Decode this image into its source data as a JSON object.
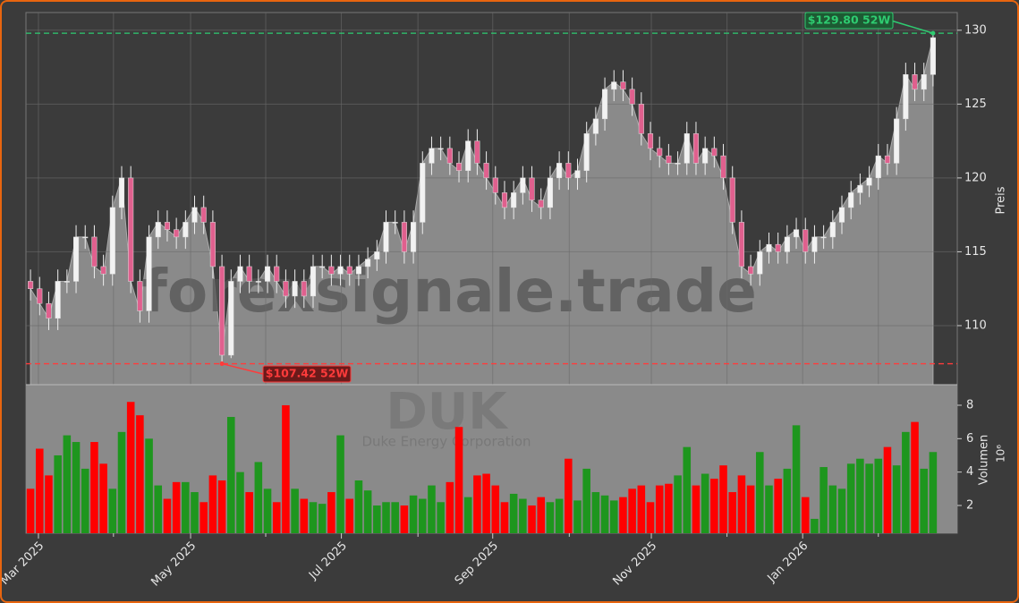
{
  "chart_data": {
    "type": "candlestick",
    "watermark": "forexsignale.trade",
    "ticker": "DUK",
    "company": "Duke Energy Corporation",
    "ylabel": "Preis",
    "y2label": "Volumen",
    "y2unit": "10⁶",
    "ylim": [
      106,
      131.2
    ],
    "yticks": [
      110,
      115,
      120,
      125,
      130
    ],
    "y2lim": [
      0.34,
      9.23
    ],
    "y2ticks": [
      2,
      4,
      6,
      8
    ],
    "xticks": [
      {
        "value": 0.87,
        "label": "Mar 2025"
      },
      {
        "value": 17.56,
        "label": "May 2025"
      },
      {
        "value": 34.1,
        "label": "Jul 2025"
      },
      {
        "value": 50.7,
        "label": "Sep 2025"
      },
      {
        "value": 68.1,
        "label": "Nov 2025"
      },
      {
        "value": 84.7,
        "label": "Jan 2026"
      }
    ],
    "xminorticks": [
      9.1,
      25.8,
      42.5,
      59.1,
      76.4,
      93.0
    ],
    "grid": true,
    "up_color": "#f2f2f2",
    "down_color": "#e0608e",
    "volume_up_color": "#1e961e",
    "volume_down_color": "#ff0000",
    "area_color": "#8a8a8a",
    "high_52w": {
      "value": 129.8,
      "label": "$129.80 52W",
      "color": "#2ecc71"
    },
    "low_52w": {
      "value": 107.42,
      "label": "$107.42 52W",
      "color": "#ff3b3b"
    },
    "open": [
      113,
      112.5,
      111.5,
      110.5,
      113,
      113,
      116,
      116,
      114,
      113.5,
      118,
      120,
      113,
      111,
      116,
      117,
      116.5,
      116,
      117,
      118,
      117,
      114,
      108,
      113,
      114,
      113,
      113,
      114,
      113,
      112,
      113,
      112,
      114,
      114,
      113.5,
      114,
      113.5,
      114,
      114.5,
      115,
      117,
      117,
      115,
      117,
      121,
      122,
      122,
      121,
      120.5,
      122.5,
      121,
      120,
      119,
      118,
      119,
      120,
      118.5,
      118,
      120,
      121,
      120,
      120.5,
      123,
      124,
      126,
      126.5,
      126,
      125,
      123,
      122,
      121.5,
      121,
      121,
      123,
      121,
      122,
      121.5,
      120,
      117,
      114,
      113.5,
      115,
      115.5,
      115,
      116,
      116.5,
      115,
      116,
      116,
      117,
      118,
      119,
      119.5,
      120,
      121.5,
      121,
      124,
      127,
      126,
      127
    ],
    "high": [
      113.8,
      113.3,
      112.3,
      113.8,
      113.8,
      116.8,
      116.8,
      116.8,
      114.8,
      118.8,
      120.8,
      120.8,
      113.8,
      116.8,
      117.8,
      117.8,
      117.3,
      117.8,
      118.8,
      118.8,
      117.8,
      114.8,
      113.8,
      114.8,
      114.8,
      113.8,
      114.8,
      114.8,
      113.8,
      113.8,
      113.8,
      114.8,
      114.8,
      114.8,
      114.8,
      114.8,
      114.8,
      115.3,
      115.8,
      117.8,
      117.8,
      117.8,
      117.8,
      121.8,
      122.8,
      122.8,
      122.8,
      121.8,
      123.3,
      123.3,
      121.8,
      120.8,
      119.8,
      119.8,
      120.8,
      120.8,
      119.3,
      120.8,
      121.8,
      121.8,
      121.3,
      123.8,
      124.8,
      126.8,
      127.3,
      127.3,
      126.8,
      125.8,
      123.8,
      122.8,
      122.3,
      121.8,
      123.8,
      123.8,
      122.8,
      122.8,
      122.3,
      120.8,
      117.8,
      114.8,
      115.8,
      116.3,
      116.3,
      116.8,
      117.3,
      117.3,
      116.8,
      116.8,
      117.8,
      118.8,
      119.8,
      120.3,
      120.8,
      122.3,
      122.3,
      124.8,
      127.8,
      127.8,
      127.8,
      129.8
    ],
    "low": [
      111.7,
      110.7,
      109.7,
      109.7,
      112.2,
      112.2,
      115.2,
      113.2,
      112.7,
      112.7,
      117.2,
      112.2,
      110.2,
      110.2,
      115.2,
      115.7,
      115.2,
      115.2,
      116.2,
      116.2,
      113.2,
      107.42,
      107.8,
      112.2,
      112.2,
      112.2,
      112.2,
      112.2,
      111.2,
      111.2,
      111.2,
      111.2,
      113.2,
      112.7,
      112.7,
      112.7,
      112.7,
      113.2,
      113.7,
      114.2,
      116.2,
      114.2,
      114.2,
      116.2,
      120.2,
      121.2,
      120.2,
      119.7,
      119.7,
      120.2,
      119.2,
      118.2,
      117.2,
      117.2,
      118.2,
      117.7,
      117.2,
      117.2,
      119.2,
      119.2,
      119.2,
      119.7,
      122.2,
      123.2,
      125.2,
      125.2,
      124.2,
      122.2,
      121.2,
      120.7,
      120.2,
      120.2,
      120.2,
      120.2,
      120.2,
      120.7,
      119.2,
      116.2,
      113.2,
      112.7,
      112.7,
      114.2,
      114.2,
      114.2,
      115.2,
      114.2,
      114.2,
      115.2,
      115.2,
      116.2,
      117.2,
      118.2,
      118.7,
      119.2,
      120.2,
      120.2,
      123.2,
      125.2,
      125.2,
      126.2
    ],
    "close": [
      112.5,
      111.5,
      110.5,
      113,
      113,
      116,
      116,
      114,
      113.5,
      118,
      120,
      113,
      111,
      116,
      117,
      116.5,
      116,
      117,
      118,
      117,
      114,
      108,
      113,
      114,
      113,
      113,
      114,
      113,
      112,
      113,
      112,
      114,
      114,
      113.5,
      114,
      113.5,
      114,
      114.5,
      115,
      117,
      117,
      115,
      117,
      121,
      122,
      122,
      121,
      120.5,
      122.5,
      121,
      120,
      119,
      118,
      119,
      120,
      118.5,
      118,
      120,
      121,
      120,
      120.5,
      123,
      124,
      126,
      126.5,
      126,
      125,
      123,
      122,
      121.5,
      121,
      121,
      123,
      121,
      122,
      121.5,
      120,
      117,
      114,
      113.5,
      115,
      115.5,
      115,
      116,
      116.5,
      115,
      116,
      116,
      117,
      118,
      119,
      119.5,
      120,
      121.5,
      121,
      124,
      127,
      126,
      127,
      129.5
    ],
    "volume": [
      3,
      5.4,
      3.8,
      5,
      6.2,
      5.8,
      4.2,
      5.8,
      4.5,
      3,
      6.4,
      8.2,
      7.4,
      6,
      3.2,
      2.4,
      3.4,
      3.4,
      2.8,
      2.2,
      3.8,
      3.5,
      7.3,
      4,
      2.8,
      4.6,
      3,
      2.2,
      8,
      3,
      2.4,
      2.2,
      2.1,
      2.8,
      6.2,
      2.4,
      3.5,
      2.9,
      2,
      2.2,
      2.2,
      2,
      2.6,
      2.4,
      3.2,
      2.2,
      3.4,
      6.7,
      2.5,
      3.8,
      3.9,
      3.2,
      2.2,
      2.7,
      2.4,
      2,
      2.5,
      2.2,
      2.4,
      4.8,
      2.3,
      4.2,
      2.8,
      2.6,
      2.3,
      2.5,
      3,
      3.2,
      2.2,
      3.2,
      3.3,
      3.8,
      5.5,
      3.2,
      3.9,
      3.6,
      4.4,
      2.8,
      3.8,
      3.2,
      5.2,
      3.2,
      3.6,
      4.2,
      6.8,
      2.5,
      1.2,
      4.3,
      3.2,
      3,
      4.5,
      4.8,
      4.5,
      4.8,
      5.5,
      4.4,
      6.4,
      7,
      4.2,
      5.2
    ]
  }
}
